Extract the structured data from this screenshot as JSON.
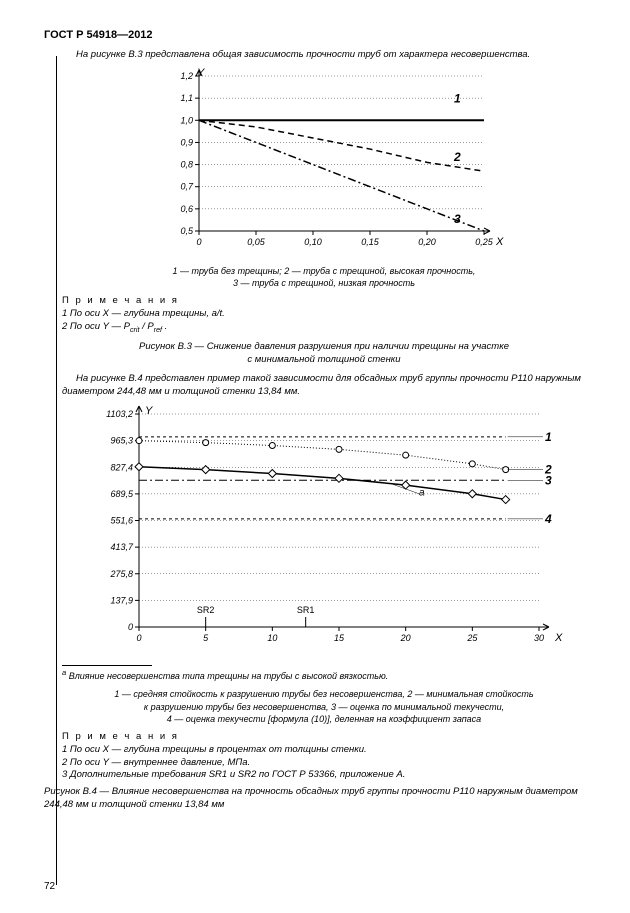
{
  "header": "ГОСТ Р 54918—2012",
  "pageNumber": "72",
  "intro1": "На рисунке В.3 представлена общая зависимость прочности труб от характера несовершенства.",
  "chart1": {
    "type": "line",
    "xLabel": "X",
    "yLabel": "Y",
    "xlim": [
      0,
      0.25
    ],
    "ylim": [
      0.5,
      1.2
    ],
    "xticks": [
      0,
      0.05,
      0.1,
      0.15,
      0.2,
      0.25
    ],
    "xtickLabels": [
      "0",
      "0,05",
      "0,10",
      "0,15",
      "0,20",
      "0,25"
    ],
    "yticks": [
      0.5,
      0.6,
      0.7,
      0.8,
      0.9,
      1.0,
      1.1,
      1.2
    ],
    "ytickLabels": [
      "0,5",
      "0,6",
      "0,7",
      "0,8",
      "0,9",
      "1,0",
      "1,1",
      "1,2"
    ],
    "background": "#ffffff",
    "axisColor": "#000000",
    "series": [
      {
        "id": "1",
        "label": "1",
        "style": "solid",
        "width": 2,
        "color": "#000000",
        "points": [
          [
            0,
            1.0
          ],
          [
            0.25,
            1.0
          ]
        ]
      },
      {
        "id": "2",
        "label": "2",
        "style": "dash",
        "width": 1.5,
        "color": "#000000",
        "points": [
          [
            0,
            1.0
          ],
          [
            0.05,
            0.97
          ],
          [
            0.1,
            0.92
          ],
          [
            0.15,
            0.87
          ],
          [
            0.2,
            0.81
          ],
          [
            0.25,
            0.77
          ]
        ]
      },
      {
        "id": "3",
        "label": "3",
        "style": "dashdot",
        "width": 1.5,
        "color": "#000000",
        "points": [
          [
            0,
            1.0
          ],
          [
            0.05,
            0.9
          ],
          [
            0.1,
            0.8
          ],
          [
            0.15,
            0.7
          ],
          [
            0.2,
            0.6
          ],
          [
            0.25,
            0.5
          ]
        ]
      }
    ],
    "legend": "1 — труба без трещины; 2 — труба с трещиной, высокая прочность,\n3 — труба с трещиной, низкая прочность"
  },
  "notes1Header": "П р и м е ч а н и я",
  "notes1": [
    "1 По оси X — глубина трещины, a/t.",
    "2 По оси Y — Pcrit / Pref ."
  ],
  "caption1": "Рисунок В.3 — Снижение давления разрушения при наличии трещины на участке\nс минимальной толщиной стенки",
  "intro2": "На рисунке В.4 представлен пример такой зависимости для обсадных труб группы прочности P110 наружным диаметром 244,48 мм и толщиной стенки 13,84 мм.",
  "chart2": {
    "type": "line",
    "xLabel": "X",
    "yLabel": "Y",
    "xlim": [
      0,
      30
    ],
    "ylim": [
      0,
      1103.2
    ],
    "xticks": [
      0,
      5,
      10,
      15,
      20,
      25,
      30
    ],
    "xtickLabels": [
      "0",
      "5",
      "10",
      "15",
      "20",
      "25",
      "30"
    ],
    "yticks": [
      0,
      137.9,
      275.8,
      413.7,
      551.6,
      689.5,
      827.4,
      965.3,
      1103.2
    ],
    "ytickLabels": [
      "0",
      "137,9",
      "275,8",
      "413,7",
      "551,6",
      "689,5",
      "827,4",
      "965,3",
      "1103,2"
    ],
    "srMarks": [
      {
        "label": "SR2",
        "x": 5
      },
      {
        "label": "SR1",
        "x": 12.5
      }
    ],
    "aLabel": "a",
    "background": "#ffffff",
    "axisColor": "#000000",
    "series": [
      {
        "id": "1",
        "label": "1",
        "style": "dash-fine",
        "color": "#000000",
        "width": 1,
        "points": [
          [
            0,
            985
          ],
          [
            27.5,
            985
          ]
        ]
      },
      {
        "id": "2",
        "label": "2",
        "style": "dot",
        "color": "#000000",
        "width": 1,
        "points": [
          [
            0,
            965
          ],
          [
            5,
            955
          ],
          [
            10,
            940
          ],
          [
            15,
            920
          ],
          [
            20,
            890
          ],
          [
            25,
            845
          ],
          [
            27.5,
            815
          ]
        ],
        "marker": "circle"
      },
      {
        "id": "3",
        "label": "3",
        "style": "dashdot",
        "color": "#000000",
        "width": 1,
        "points": [
          [
            0,
            760
          ],
          [
            27.5,
            760
          ]
        ]
      },
      {
        "id": "a",
        "label": "a",
        "style": "solid",
        "color": "#000000",
        "width": 1.5,
        "points": [
          [
            0,
            830
          ],
          [
            5,
            815
          ],
          [
            10,
            795
          ],
          [
            15,
            770
          ],
          [
            20,
            735
          ],
          [
            25,
            690
          ],
          [
            27.5,
            660
          ]
        ],
        "marker": "diamond"
      },
      {
        "id": "4",
        "label": "4",
        "style": "dash-fine",
        "color": "#000000",
        "width": 1,
        "points": [
          [
            0,
            560
          ],
          [
            27.5,
            560
          ]
        ]
      }
    ],
    "legend": "1 — средняя стойкость к разрушению трубы без несовершенства, 2 — минимальная стойкость\nк разрушению трубы без несовершенства, 3 — оценка по минимальной текучести,\n4 — оценка текучести [формула (10)], деленная на коэффициент запаса"
  },
  "footnoteA": "a Влияние несовершенства типа трещины на трубы с высокой вязкостью.",
  "notes2Header": "П р и м е ч а н и я",
  "notes2": [
    "1 По оси X — глубина трещины в процентах от толщины стенки.",
    "2 По оси Y — внутреннее давление, МПа.",
    "3 Дополнительные требования SR1 и SR2 по ГОСТ Р 53366, приложение A."
  ],
  "caption2": "Рисунок В.4 — Влияние несовершенства на прочность обсадных труб группы прочности P110  наружным диаметром 244,48 мм и толщиной стенки 13,84 мм"
}
